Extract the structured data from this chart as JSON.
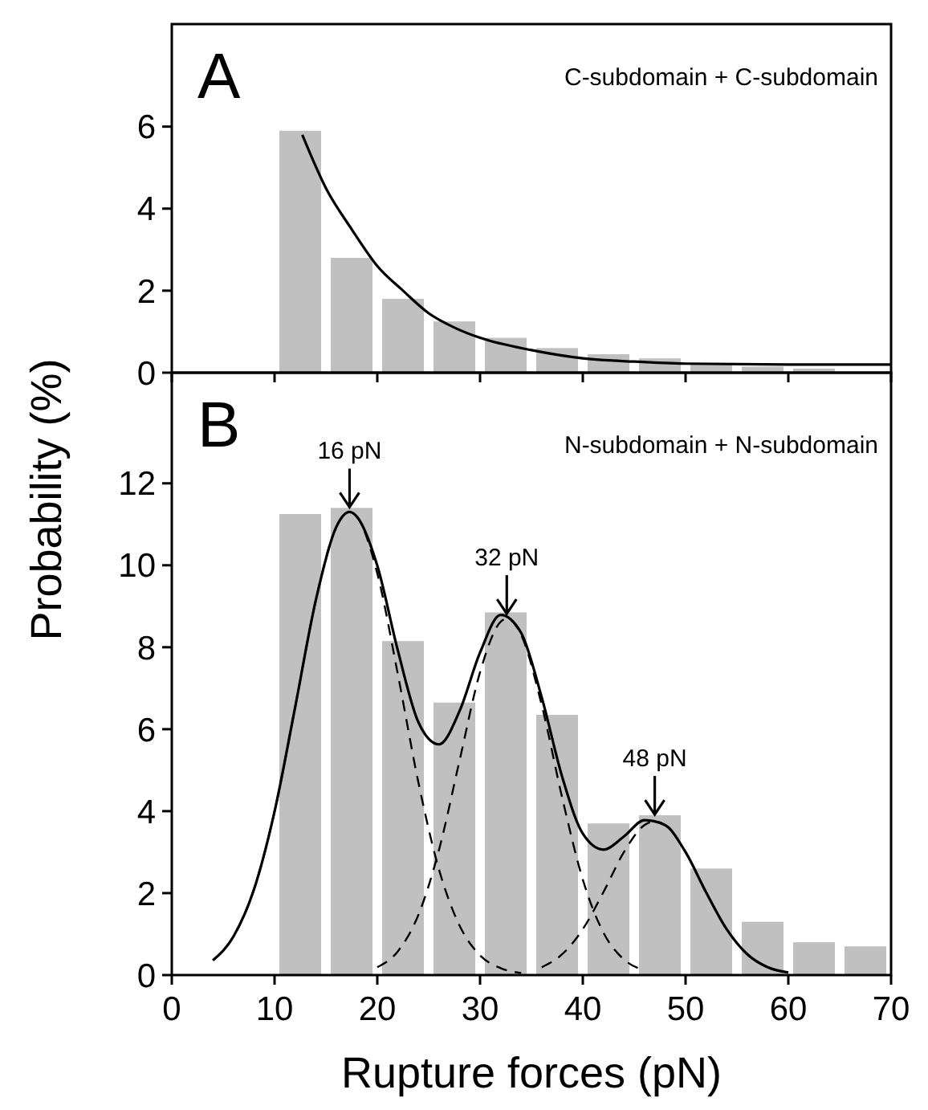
{
  "chart_data": [
    {
      "type": "histogram",
      "title": "A",
      "subtitle": "C-subdomain  + C-subdomain",
      "ylabel": "Probability (%)",
      "xlim": [
        0,
        70
      ],
      "xticks": [
        0,
        10,
        20,
        30,
        40,
        50,
        60,
        70
      ],
      "ylim": [
        0,
        8.5
      ],
      "yticks": [
        0,
        2,
        4,
        6
      ],
      "tick_labels": "y",
      "grid": false,
      "marker": "none",
      "series": [
        {
          "color": "#c0c0c0",
          "bins": [
            10,
            15,
            20,
            25,
            30,
            35,
            40,
            45,
            50,
            55,
            60,
            65
          ],
          "values": [
            5.9,
            2.8,
            1.8,
            1.25,
            0.85,
            0.6,
            0.45,
            0.35,
            0.22,
            0.15,
            0.1
          ]
        },
        {
          "type": "line",
          "color": "#000000",
          "line_style": "solid",
          "x": [
            12.7,
            15,
            17.5,
            20,
            22.5,
            25,
            27.5,
            30,
            35,
            40,
            45,
            50,
            60,
            70
          ],
          "values": [
            5.8,
            4.5,
            3.5,
            2.6,
            2.0,
            1.45,
            1.1,
            0.85,
            0.55,
            0.35,
            0.27,
            0.22,
            0.2,
            0.2
          ]
        }
      ]
    },
    {
      "type": "histogram",
      "title": "B",
      "subtitle": "N-subdomain + N-subdomain",
      "xlabel": "Rupture forces (pN)",
      "xlim": [
        0,
        70
      ],
      "xticks": [
        0,
        10,
        20,
        30,
        40,
        50,
        60,
        70
      ],
      "ylim": [
        0,
        14.7
      ],
      "yticks": [
        0,
        2,
        4,
        6,
        8,
        10,
        12
      ],
      "grid": false,
      "marker": "none",
      "annotations": [
        {
          "text": "16 pN",
          "x": 17.3,
          "y": 11.3
        },
        {
          "text": "32 pN",
          "x": 32.6,
          "y": 8.7
        },
        {
          "text": "48 pN",
          "x": 47,
          "y": 3.8
        }
      ],
      "series": [
        {
          "color": "#c0c0c0",
          "bins": [
            10,
            15,
            20,
            25,
            30,
            35,
            40,
            45,
            50,
            55,
            60,
            65,
            70
          ],
          "values": [
            11.25,
            11.4,
            8.15,
            6.65,
            8.85,
            6.35,
            3.7,
            3.9,
            2.6,
            1.3,
            0.8,
            0.7
          ]
        },
        {
          "type": "line",
          "color": "#000000",
          "line_style": "dashed",
          "x": [
            4,
            6,
            8,
            10,
            12,
            14,
            16,
            17.3,
            18,
            20,
            22,
            24,
            26,
            28,
            30,
            32,
            34
          ],
          "values": [
            0.36,
            0.94,
            2.09,
            3.99,
            6.53,
            9.13,
            10.93,
            11.3,
            11.19,
            9.8,
            7.34,
            4.7,
            2.58,
            1.21,
            0.48,
            0.17,
            0.05
          ]
        },
        {
          "type": "line",
          "color": "#000000",
          "line_style": "dashed",
          "x": [
            20,
            22,
            24,
            26,
            28,
            30,
            32,
            32.6,
            34,
            36,
            38,
            40,
            42,
            44,
            46
          ],
          "values": [
            0.19,
            0.58,
            1.47,
            3.05,
            5.23,
            7.39,
            8.62,
            8.7,
            8.3,
            6.59,
            4.32,
            2.33,
            1.04,
            0.38,
            0.12
          ]
        },
        {
          "type": "line",
          "color": "#000000",
          "line_style": "dashed",
          "x": [
            36,
            38,
            40,
            42,
            44,
            46,
            47,
            48,
            50,
            52,
            54,
            56,
            58,
            60
          ],
          "values": [
            0.19,
            0.51,
            1.12,
            2.02,
            3.0,
            3.66,
            3.75,
            3.66,
            3.0,
            2.02,
            1.12,
            0.51,
            0.19,
            0.06
          ]
        },
        {
          "type": "line",
          "color": "#000000",
          "line_style": "solid",
          "x": [
            4,
            6,
            8,
            10,
            12,
            14,
            16,
            17.3,
            18,
            20,
            22,
            24,
            26,
            28,
            30,
            32,
            34,
            36,
            38,
            40,
            42,
            44,
            46,
            48,
            50,
            52,
            54,
            56,
            58,
            60
          ],
          "values": [
            0.36,
            0.94,
            2.09,
            3.99,
            6.53,
            9.13,
            10.93,
            11.3,
            11.19,
            9.99,
            7.92,
            6.17,
            5.63,
            6.44,
            7.87,
            8.79,
            8.35,
            6.78,
            4.83,
            3.45,
            3.06,
            3.38,
            3.78,
            3.66,
            3.0,
            2.02,
            1.12,
            0.51,
            0.19,
            0.06
          ]
        }
      ]
    }
  ]
}
